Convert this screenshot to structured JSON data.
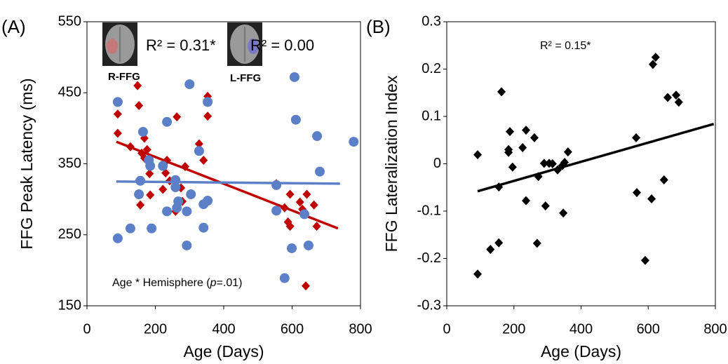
{
  "chart_data": [
    {
      "type": "scatter",
      "panel_label": "(A)",
      "xlabel": "Age (Days)",
      "ylabel": "FFG Peak Latency (ms)",
      "xlim": [
        0,
        800
      ],
      "ylim": [
        150,
        550
      ],
      "xticks": [
        0,
        200,
        400,
        600,
        800
      ],
      "yticks": [
        150,
        250,
        350,
        450,
        550
      ],
      "series": [
        {
          "name": "R-FFG",
          "color": "#c00000",
          "marker": "diamond",
          "x": [
            90,
            90,
            127,
            148,
            152,
            160,
            168,
            176,
            168,
            185,
            183,
            185,
            156,
            234,
            230,
            242,
            222,
            263,
            275,
            287,
            259,
            328,
            353,
            353,
            341,
            279,
            554,
            578,
            594,
            588,
            594,
            623,
            643,
            630,
            664,
            672,
            640
          ],
          "values": [
            420,
            393,
            374,
            460,
            432,
            365,
            386,
            370,
            358,
            346,
            336,
            306,
            292,
            355,
            337,
            326,
            314,
            416,
            316,
            346,
            283,
            378,
            445,
            417,
            355,
            297,
            322,
            288,
            307,
            268,
            262,
            296,
            307,
            286,
            292,
            262,
            178
          ],
          "fit": {
            "x": [
              86,
              734
            ],
            "y": [
              381,
              259
            ]
          }
        },
        {
          "name": "L-FFG",
          "color": "#5b80c8",
          "marker": "circle",
          "x": [
            90,
            90,
            127,
            152,
            156,
            164,
            181,
            185,
            189,
            222,
            234,
            234,
            259,
            259,
            263,
            267,
            292,
            292,
            300,
            304,
            328,
            341,
            341,
            353,
            353,
            554,
            554,
            578,
            599,
            607,
            611,
            636,
            648,
            673,
            681,
            780
          ],
          "values": [
            437,
            245,
            259,
            307,
            326,
            395,
            355,
            347,
            259,
            347,
            409,
            283,
            327,
            317,
            288,
            297,
            283,
            235,
            462,
            307,
            368,
            293,
            260,
            437,
            298,
            320,
            284,
            189,
            231,
            472,
            412,
            279,
            235,
            389,
            339,
            381
          ],
          "fit": {
            "x": [
              86,
              740
            ],
            "y": [
              325,
              322
            ]
          }
        }
      ],
      "annotations": [
        {
          "text": "R² = 0.31*",
          "color": "#c00000"
        },
        {
          "text": "R² = 0.00",
          "color": "#5b80c8"
        },
        {
          "text": [
            "Age * Hemisphere (",
            "p",
            "=.01)"
          ],
          "color": "#000000"
        }
      ]
    },
    {
      "type": "scatter",
      "panel_label": "(B)",
      "xlabel": "Age (Days)",
      "ylabel": "FFG Lateralization Index",
      "xlim": [
        0,
        800
      ],
      "ylim": [
        -0.3,
        0.3
      ],
      "xticks": [
        0,
        200,
        400,
        600,
        800
      ],
      "yticks": [
        -0.3,
        -0.2,
        -0.1,
        0,
        0.1,
        0.2,
        0.3
      ],
      "series": [
        {
          "color": "#000000",
          "marker": "diamond",
          "x": [
            92,
            92,
            163,
            155,
            130,
            155,
            188,
            184,
            184,
            196,
            236,
            226,
            236,
            261,
            269,
            273,
            290,
            294,
            305,
            315,
            330,
            344,
            351,
            347,
            361,
            564,
            566,
            591,
            610,
            614,
            622,
            647,
            658,
            683,
            691
          ],
          "values": [
            0.019,
            -0.233,
            0.152,
            -0.049,
            -0.181,
            -0.167,
            0.068,
            0.03,
            0.024,
            -0.007,
            0.071,
            0.034,
            -0.078,
            0.055,
            -0.168,
            -0.027,
            0.001,
            -0.089,
            0.001,
            0,
            -0.013,
            -0.004,
            0.003,
            -0.104,
            0.025,
            0.055,
            -0.061,
            -0.204,
            -0.074,
            0.21,
            0.225,
            -0.034,
            0.14,
            0.145,
            0.13
          ],
          "fit": {
            "x": [
              92,
              795
            ],
            "y": [
              -0.058,
              0.084
            ]
          }
        }
      ],
      "annotations": [
        {
          "text": "R² = 0.15*",
          "color": "#000000"
        }
      ]
    }
  ]
}
